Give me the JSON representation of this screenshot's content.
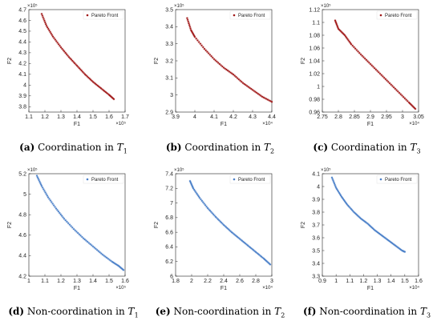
{
  "chart_data": [
    {
      "type": "scatter",
      "caption_tag": "(a)",
      "caption_text": "Coordination in",
      "caption_var": "T",
      "caption_sub": "1",
      "xlabel": "F1",
      "ylabel": "F2",
      "xlim": [
        1.1,
        1.7
      ],
      "ylim": [
        3.75,
        4.7
      ],
      "xticks": [
        "1.1",
        "1.2",
        "1.3",
        "1.4",
        "1.5",
        "1.6",
        "1.7"
      ],
      "yticks": [
        "3.8",
        "3.9",
        "4",
        "4.1",
        "4.2",
        "4.3",
        "4.4",
        "4.5",
        "4.6",
        "4.7"
      ],
      "x_exponent": "×10⁵",
      "y_exponent": "×10⁵",
      "series": [
        {
          "name": "Pareto Front",
          "color": "#a01818",
          "x": [
            1.18,
            1.21,
            1.25,
            1.3,
            1.35,
            1.4,
            1.45,
            1.5,
            1.55,
            1.6,
            1.63
          ],
          "y": [
            4.66,
            4.55,
            4.45,
            4.35,
            4.26,
            4.18,
            4.1,
            4.03,
            3.97,
            3.91,
            3.87
          ]
        }
      ]
    },
    {
      "type": "scatter",
      "caption_tag": "(b)",
      "caption_text": "Coordination in",
      "caption_var": "T",
      "caption_sub": "2",
      "xlabel": "F1",
      "ylabel": "F2",
      "xlim": [
        3.9,
        4.4
      ],
      "ylim": [
        2.9,
        3.5
      ],
      "xticks": [
        "3.9",
        "4",
        "4.1",
        "4.2",
        "4.3",
        "4.4"
      ],
      "yticks": [
        "2.9",
        "3",
        "3.1",
        "3.2",
        "3.3",
        "3.4",
        "3.5"
      ],
      "x_exponent": "×10⁴",
      "y_exponent": "×10⁵",
      "series": [
        {
          "name": "Pareto Front",
          "color": "#a01818",
          "x": [
            3.96,
            3.98,
            4.0,
            4.05,
            4.1,
            4.15,
            4.2,
            4.25,
            4.3,
            4.35,
            4.4
          ],
          "y": [
            3.45,
            3.38,
            3.34,
            3.27,
            3.21,
            3.16,
            3.12,
            3.07,
            3.03,
            2.99,
            2.96
          ]
        }
      ]
    },
    {
      "type": "scatter",
      "caption_tag": "(c)",
      "caption_text": "Coordination in",
      "caption_var": "T",
      "caption_sub": "3",
      "xlabel": "F1",
      "ylabel": "F2",
      "xlim": [
        2.75,
        3.05
      ],
      "ylim": [
        0.96,
        1.12
      ],
      "xticks": [
        "2.75",
        "2.8",
        "2.85",
        "2.9",
        "2.95",
        "3",
        "3.05"
      ],
      "yticks": [
        "0.96",
        "0.98",
        "1",
        "1.02",
        "1.04",
        "1.06",
        "1.08",
        "1.1",
        "1.12"
      ],
      "x_exponent": "×10⁴",
      "y_exponent": "×10⁵",
      "series": [
        {
          "name": "Pareto Front",
          "color": "#a01818",
          "x": [
            2.79,
            2.8,
            2.82,
            2.84,
            2.87,
            2.9,
            2.93,
            2.96,
            2.99,
            3.02,
            3.04
          ],
          "y": [
            1.103,
            1.09,
            1.08,
            1.066,
            1.05,
            1.035,
            1.02,
            1.005,
            0.99,
            0.975,
            0.965
          ]
        }
      ]
    },
    {
      "type": "scatter",
      "caption_tag": "(d)",
      "caption_text": "Non-coordination in",
      "caption_var": "T",
      "caption_sub": "1",
      "xlabel": "F1",
      "ylabel": "F2",
      "xlim": [
        1.0,
        1.6
      ],
      "ylim": [
        4.2,
        5.2
      ],
      "xticks": [
        "1",
        "1.1",
        "1.2",
        "1.3",
        "1.4",
        "1.5",
        "1.6"
      ],
      "yticks": [
        "4.2",
        "4.4",
        "4.6",
        "4.8",
        "5",
        "5.2"
      ],
      "x_exponent": "×10⁵",
      "y_exponent": "×10⁵",
      "series": [
        {
          "name": "Pareto Front",
          "color": "#4a7fc8",
          "x": [
            1.05,
            1.08,
            1.12,
            1.17,
            1.22,
            1.28,
            1.34,
            1.4,
            1.46,
            1.52,
            1.56,
            1.59
          ],
          "y": [
            5.18,
            5.08,
            4.97,
            4.86,
            4.76,
            4.66,
            4.57,
            4.49,
            4.41,
            4.34,
            4.3,
            4.26
          ]
        }
      ]
    },
    {
      "type": "scatter",
      "caption_tag": "(e)",
      "caption_text": "Non-coordination in",
      "caption_var": "T",
      "caption_sub": "2",
      "xlabel": "F1",
      "ylabel": "F2",
      "xlim": [
        1.8,
        3.0
      ],
      "ylim": [
        6.0,
        7.4
      ],
      "xticks": [
        "1.8",
        "2",
        "2.2",
        "2.4",
        "2.6",
        "2.8",
        "3"
      ],
      "yticks": [
        "6",
        "6.2",
        "6.4",
        "6.6",
        "6.8",
        "7",
        "7.2",
        "7.4"
      ],
      "x_exponent": "×10⁴",
      "y_exponent": "×10⁵",
      "series": [
        {
          "name": "Pareto Front",
          "color": "#4a7fc8",
          "x": [
            1.98,
            2.02,
            2.1,
            2.2,
            2.3,
            2.4,
            2.5,
            2.6,
            2.7,
            2.8,
            2.9,
            2.98
          ],
          "y": [
            7.3,
            7.2,
            7.07,
            6.93,
            6.81,
            6.7,
            6.6,
            6.51,
            6.42,
            6.33,
            6.24,
            6.16
          ]
        }
      ]
    },
    {
      "type": "scatter",
      "caption_tag": "(f)",
      "caption_text": "Non-coordination in",
      "caption_var": "T",
      "caption_sub": "3",
      "xlabel": "F1",
      "ylabel": "F2",
      "xlim": [
        0.9,
        1.6
      ],
      "ylim": [
        3.3,
        4.1
      ],
      "xticks": [
        "0.9",
        "1",
        "1.1",
        "1.2",
        "1.3",
        "1.4",
        "1.5",
        "1.6"
      ],
      "yticks": [
        "3.3",
        "3.4",
        "3.5",
        "3.6",
        "3.7",
        "3.8",
        "3.9",
        "4",
        "4.1"
      ],
      "x_exponent": "×10⁴",
      "y_exponent": "×10⁵",
      "series": [
        {
          "name": "Pareto Front",
          "color": "#4a7fc8",
          "x": [
            0.97,
            1.0,
            1.04,
            1.08,
            1.13,
            1.18,
            1.23,
            1.28,
            1.33,
            1.38,
            1.43,
            1.48,
            1.5
          ],
          "y": [
            4.07,
            3.99,
            3.92,
            3.86,
            3.8,
            3.75,
            3.71,
            3.66,
            3.62,
            3.58,
            3.54,
            3.5,
            3.49
          ]
        }
      ]
    }
  ]
}
